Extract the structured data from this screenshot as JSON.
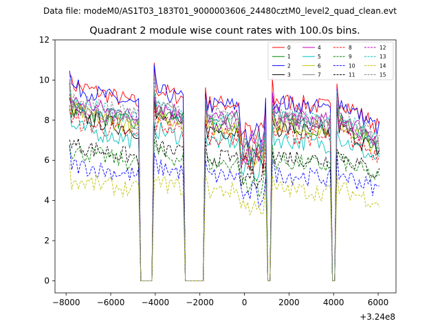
{
  "chart_data": {
    "type": "line",
    "suptitle": "Data file: modeM0/AS1T03_183T01_9000003606_24480cztM0_level2_quad_clean.evt",
    "title": "Quadrant 2 module wise count rates with 100.0s bins.",
    "xlabel": "",
    "ylabel": "",
    "x_offset_label": "+3.24e8",
    "xlim": [
      -8500,
      6800
    ],
    "ylim": [
      -0.6,
      12
    ],
    "xticks": [
      -8000,
      -6000,
      -4000,
      -2000,
      0,
      2000,
      4000,
      6000
    ],
    "yticks": [
      0,
      2,
      4,
      6,
      8,
      10,
      12
    ],
    "gti_segments": [
      {
        "start": -7850,
        "end": -4750,
        "start_level": 1.0,
        "end_level": 0.9
      },
      {
        "start": -4050,
        "end": -2750,
        "start_level": 0.98,
        "end_level": 0.93
      },
      {
        "start": -1750,
        "end": 950,
        "start_level": 0.9,
        "end_level": 0.9
      },
      {
        "start": 1250,
        "end": 3850,
        "start_level": 0.92,
        "end_level": 0.88
      },
      {
        "start": 4150,
        "end": 6050,
        "start_level": 0.93,
        "end_level": 0.78
      }
    ],
    "gaps": [
      [
        -4650,
        -4150
      ],
      [
        -2650,
        -1850
      ],
      [
        1050,
        1150
      ],
      [
        3950,
        4050
      ]
    ],
    "series": [
      {
        "name": "0",
        "color": "#ff0000",
        "dash": "solid",
        "level": 9.8
      },
      {
        "name": "1",
        "color": "#008000",
        "dash": "solid",
        "level": 8.6
      },
      {
        "name": "2",
        "color": "#0000ff",
        "dash": "solid",
        "level": 9.7
      },
      {
        "name": "3",
        "color": "#000000",
        "dash": "solid",
        "level": 8.3
      },
      {
        "name": "4",
        "color": "#bf00bf",
        "dash": "solid",
        "level": 9.0
      },
      {
        "name": "5",
        "color": "#00bfbf",
        "dash": "solid",
        "level": 7.7
      },
      {
        "name": "6",
        "color": "#bfbf00",
        "dash": "solid",
        "level": 8.5
      },
      {
        "name": "7",
        "color": "#808080",
        "dash": "solid",
        "level": 8.8
      },
      {
        "name": "8",
        "color": "#ff0000",
        "dash": "dashed",
        "level": 8.0
      },
      {
        "name": "9",
        "color": "#008000",
        "dash": "dashed",
        "level": 6.5
      },
      {
        "name": "10",
        "color": "#0000ff",
        "dash": "dashed",
        "level": 5.8
      },
      {
        "name": "11",
        "color": "#000000",
        "dash": "dashed",
        "level": 6.8
      },
      {
        "name": "12",
        "color": "#bf00bf",
        "dash": "dashed",
        "level": 8.7
      },
      {
        "name": "13",
        "color": "#00bfbf",
        "dash": "dashed",
        "level": 8.9
      },
      {
        "name": "14",
        "color": "#bfbf00",
        "dash": "dashed",
        "level": 5.0
      },
      {
        "name": "15",
        "color": "#808080",
        "dash": "dashed",
        "level": 9.1
      }
    ],
    "legend_position": "top-right"
  }
}
